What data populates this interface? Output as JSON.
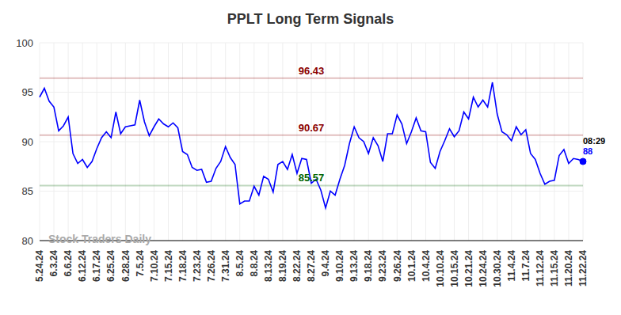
{
  "chart_data": {
    "type": "line",
    "title": "PPLT Long Term Signals",
    "watermark": "Stock Traders Daily",
    "categories": [
      "5.24.24",
      null,
      null,
      "6.3.24",
      null,
      null,
      "6.6.24",
      null,
      null,
      "6.12.24",
      null,
      null,
      "6.17.24",
      null,
      null,
      "6.25.24",
      null,
      null,
      "6.28.24",
      null,
      null,
      "7.5.24",
      null,
      null,
      "7.10.24",
      null,
      null,
      "7.15.24",
      null,
      null,
      "7.18.24",
      null,
      null,
      "7.23.24",
      null,
      null,
      "7.26.24",
      null,
      null,
      "7.31.24",
      null,
      null,
      "8.5.24",
      null,
      null,
      "8.8.24",
      null,
      null,
      "8.13.24",
      null,
      null,
      "8.19.24",
      null,
      null,
      "8.22.24",
      null,
      null,
      "8.27.24",
      null,
      null,
      "9.4.24",
      null,
      null,
      "9.10.24",
      null,
      null,
      "9.13.24",
      null,
      null,
      "9.18.24",
      null,
      null,
      "9.23.24",
      null,
      null,
      "9.26.24",
      null,
      null,
      "10.1.24",
      null,
      null,
      "10.4.24",
      null,
      null,
      "10.10.24",
      null,
      null,
      "10.15.24",
      null,
      null,
      "10.21.24",
      null,
      null,
      "10.24.24",
      null,
      null,
      "10.30.24",
      null,
      null,
      "11.4.24",
      null,
      null,
      "11.7.24",
      null,
      null,
      "11.12.24",
      null,
      null,
      "11.15.24",
      null,
      null,
      "11.20.24",
      null,
      null,
      "11.22.24"
    ],
    "values": [
      94.5,
      95.4,
      94.1,
      93.5,
      91.1,
      91.6,
      92.5,
      88.8,
      87.8,
      88.2,
      87.4,
      88.0,
      89.3,
      90.4,
      91.0,
      90.4,
      93.0,
      90.8,
      91.5,
      91.6,
      91.7,
      94.2,
      92.0,
      90.6,
      91.5,
      92.3,
      91.8,
      91.5,
      91.9,
      91.4,
      89.0,
      88.7,
      87.4,
      87.1,
      87.2,
      85.9,
      86.0,
      87.3,
      88.0,
      89.5,
      88.4,
      87.7,
      83.7,
      84.0,
      84.0,
      85.5,
      84.6,
      86.5,
      86.2,
      84.9,
      87.7,
      88.0,
      87.2,
      88.7,
      86.8,
      88.3,
      88.2,
      85.8,
      86.2,
      85.1,
      83.3,
      85.0,
      84.6,
      86.2,
      87.6,
      89.8,
      91.5,
      90.4,
      90.0,
      88.8,
      90.4,
      89.6,
      88.0,
      90.8,
      90.8,
      92.7,
      91.8,
      89.8,
      91.0,
      92.4,
      91.1,
      91.0,
      87.9,
      87.3,
      89.0,
      90.1,
      91.3,
      90.5,
      91.1,
      93.0,
      92.3,
      94.5,
      93.5,
      94.2,
      93.5,
      96.0,
      92.8,
      91.0,
      90.7,
      90.1,
      91.5,
      90.7,
      91.2,
      88.8,
      88.2,
      86.8,
      85.7,
      86.0,
      86.1,
      88.6,
      89.2,
      87.8,
      88.3,
      88.2,
      88.0
    ],
    "color": "#0000ff",
    "ylim": [
      80,
      100
    ],
    "yticks": [
      80,
      85,
      90,
      95,
      100
    ],
    "grid": true,
    "reference_lines": [
      {
        "value": 96.43,
        "color": "#8b0000"
      },
      {
        "value": 90.67,
        "color": "#8b0000"
      },
      {
        "value": 85.57,
        "color": "#006400"
      }
    ],
    "last_point": {
      "time": "08:29",
      "value": 88,
      "color": "#0000ff"
    }
  }
}
